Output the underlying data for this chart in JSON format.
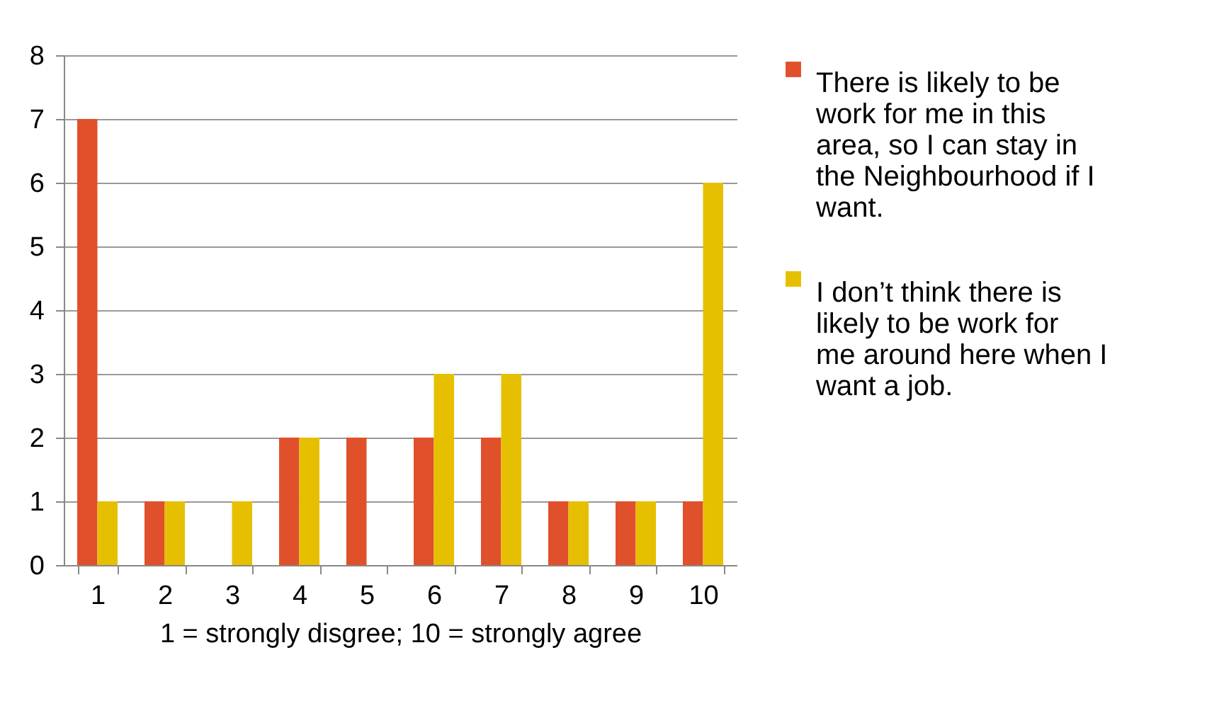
{
  "chart_data": {
    "type": "bar",
    "xlabel": "1 = strongly disgree; 10 = strongly agree",
    "categories": [
      "1",
      "2",
      "3",
      "4",
      "5",
      "6",
      "7",
      "8",
      "9",
      "10"
    ],
    "series": [
      {
        "name": "There is likely to be work for me in this area, so I can stay in the Neighbourhood if I want.",
        "color": "#e0502a",
        "values": [
          7,
          1,
          0,
          2,
          2,
          2,
          2,
          1,
          1,
          1
        ]
      },
      {
        "name": "I don’t think there is likely to be work for me around here when I want a job.",
        "color": "#e6c000",
        "values": [
          1,
          1,
          1,
          2,
          0,
          3,
          3,
          1,
          1,
          6
        ]
      }
    ],
    "ylim": [
      0,
      8
    ],
    "yticks": [
      0,
      1,
      2,
      3,
      4,
      5,
      6,
      7,
      8
    ],
    "grid": "y",
    "legend": "right"
  }
}
